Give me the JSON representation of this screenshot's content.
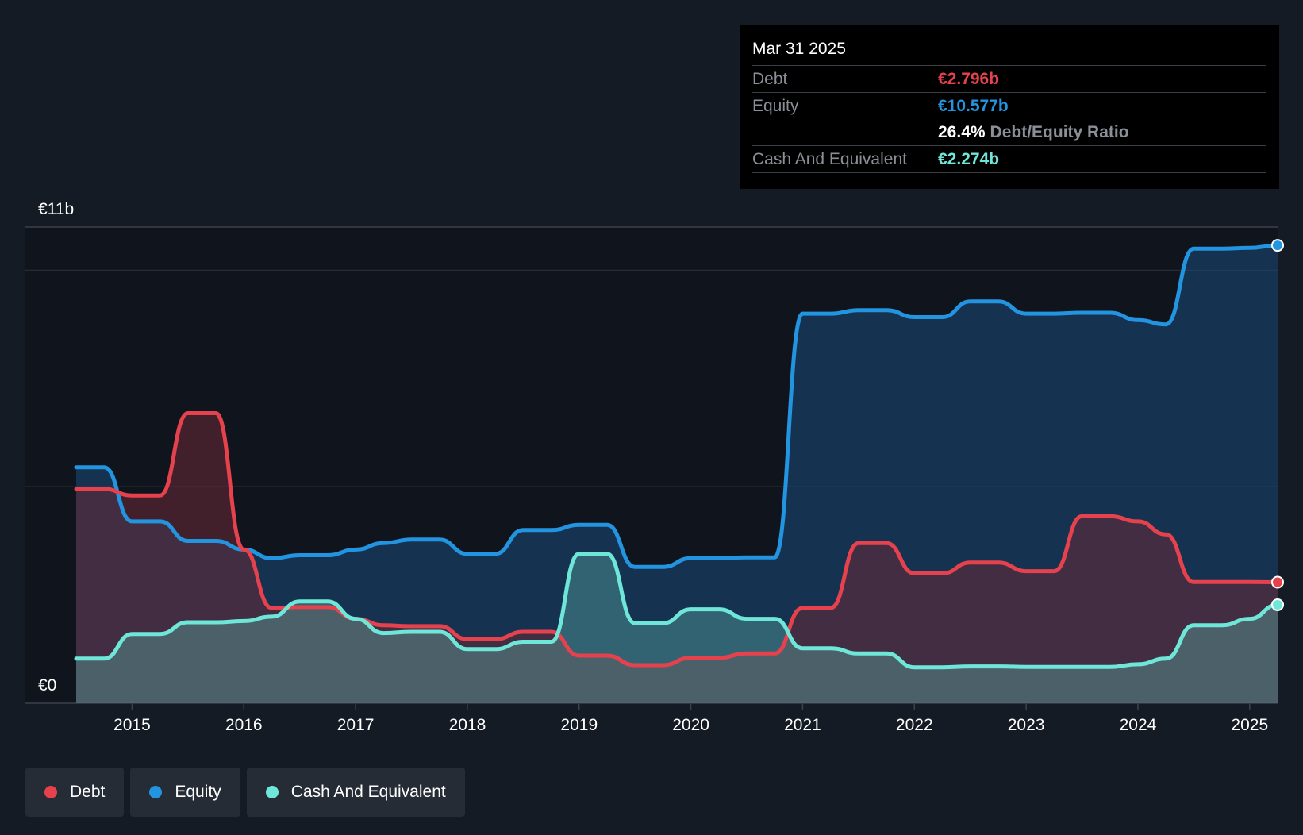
{
  "tooltip": {
    "date": "Mar 31 2025",
    "debt_label": "Debt",
    "debt_value": "€2.796b",
    "equity_label": "Equity",
    "equity_value": "€10.577b",
    "ratio_value": "26.4%",
    "ratio_label": "Debt/Equity Ratio",
    "cash_label": "Cash And Equivalent",
    "cash_value": "€2.274b"
  },
  "legend": [
    {
      "label": "Debt",
      "color": "#e5424d"
    },
    {
      "label": "Equity",
      "color": "#2394df"
    },
    {
      "label": "Cash And Equivalent",
      "color": "#6ee7d9"
    }
  ],
  "chart_data": {
    "type": "area",
    "title": "",
    "y_top_label": "€11b",
    "y_zero_label": "€0",
    "ylim": [
      0,
      11
    ],
    "xlim": [
      2014.5,
      2025.25
    ],
    "x_ticks": [
      2015,
      2016,
      2017,
      2018,
      2019,
      2020,
      2021,
      2022,
      2023,
      2024,
      2025
    ],
    "x_tick_labels": [
      "2015",
      "2016",
      "2017",
      "2018",
      "2019",
      "2020",
      "2021",
      "2022",
      "2023",
      "2024",
      "2025"
    ],
    "colors": {
      "Debt": "#e5424d",
      "Equity": "#2394df",
      "Cash And Equivalent": "#6ee7d9"
    },
    "series": [
      {
        "name": "Equity",
        "x": [
          2014.5,
          2014.75,
          2015.0,
          2015.25,
          2015.5,
          2015.75,
          2016.0,
          2016.25,
          2016.5,
          2016.75,
          2017.0,
          2017.25,
          2017.5,
          2017.75,
          2018.0,
          2018.25,
          2018.5,
          2018.75,
          2019.0,
          2019.25,
          2019.5,
          2019.75,
          2020.0,
          2020.25,
          2020.5,
          2020.75,
          2021.0,
          2021.25,
          2021.5,
          2021.75,
          2022.0,
          2022.25,
          2022.5,
          2022.75,
          2023.0,
          2023.25,
          2023.5,
          2023.75,
          2024.0,
          2024.25,
          2024.5,
          2024.75,
          2025.0,
          2025.25
        ],
        "values": [
          5.45,
          5.45,
          4.2,
          4.2,
          3.75,
          3.75,
          3.55,
          3.35,
          3.42,
          3.42,
          3.55,
          3.7,
          3.78,
          3.78,
          3.45,
          3.45,
          4.0,
          4.0,
          4.12,
          4.12,
          3.15,
          3.15,
          3.35,
          3.35,
          3.37,
          3.37,
          9.0,
          9.0,
          9.08,
          9.08,
          8.92,
          8.92,
          9.28,
          9.28,
          9.0,
          9.0,
          9.02,
          9.02,
          8.85,
          8.75,
          10.5,
          10.5,
          10.52,
          10.577
        ]
      },
      {
        "name": "Debt",
        "x": [
          2014.5,
          2014.75,
          2015.0,
          2015.25,
          2015.5,
          2015.75,
          2016.0,
          2016.25,
          2016.5,
          2016.75,
          2017.0,
          2017.25,
          2017.5,
          2017.75,
          2018.0,
          2018.25,
          2018.5,
          2018.75,
          2019.0,
          2019.25,
          2019.5,
          2019.75,
          2020.0,
          2020.25,
          2020.5,
          2020.75,
          2021.0,
          2021.25,
          2021.5,
          2021.75,
          2022.0,
          2022.25,
          2022.5,
          2022.75,
          2023.0,
          2023.25,
          2023.5,
          2023.75,
          2024.0,
          2024.25,
          2024.5,
          2024.75,
          2025.0,
          2025.25
        ],
        "values": [
          4.95,
          4.95,
          4.8,
          4.8,
          6.7,
          6.7,
          3.55,
          2.2,
          2.22,
          2.22,
          1.95,
          1.8,
          1.78,
          1.78,
          1.48,
          1.48,
          1.65,
          1.65,
          1.1,
          1.1,
          0.88,
          0.88,
          1.05,
          1.05,
          1.15,
          1.15,
          2.2,
          2.2,
          3.7,
          3.7,
          3.0,
          3.0,
          3.25,
          3.25,
          3.05,
          3.05,
          4.32,
          4.32,
          4.2,
          3.9,
          2.8,
          2.8,
          2.8,
          2.796
        ]
      },
      {
        "name": "Cash And Equivalent",
        "x": [
          2014.5,
          2014.75,
          2015.0,
          2015.25,
          2015.5,
          2015.75,
          2016.0,
          2016.25,
          2016.5,
          2016.75,
          2017.0,
          2017.25,
          2017.5,
          2017.75,
          2018.0,
          2018.25,
          2018.5,
          2018.75,
          2019.0,
          2019.25,
          2019.5,
          2019.75,
          2020.0,
          2020.25,
          2020.5,
          2020.75,
          2021.0,
          2021.25,
          2021.5,
          2021.75,
          2022.0,
          2022.25,
          2022.5,
          2022.75,
          2023.0,
          2023.25,
          2023.5,
          2023.75,
          2024.0,
          2024.25,
          2024.5,
          2024.75,
          2025.0,
          2025.25
        ],
        "values": [
          1.03,
          1.03,
          1.6,
          1.6,
          1.87,
          1.87,
          1.9,
          2.0,
          2.35,
          2.35,
          1.95,
          1.62,
          1.65,
          1.65,
          1.25,
          1.25,
          1.42,
          1.42,
          3.45,
          3.45,
          1.85,
          1.85,
          2.17,
          2.17,
          1.95,
          1.95,
          1.27,
          1.27,
          1.15,
          1.15,
          0.83,
          0.83,
          0.85,
          0.85,
          0.84,
          0.84,
          0.84,
          0.84,
          0.9,
          1.03,
          1.8,
          1.8,
          1.95,
          2.274
        ]
      }
    ]
  }
}
